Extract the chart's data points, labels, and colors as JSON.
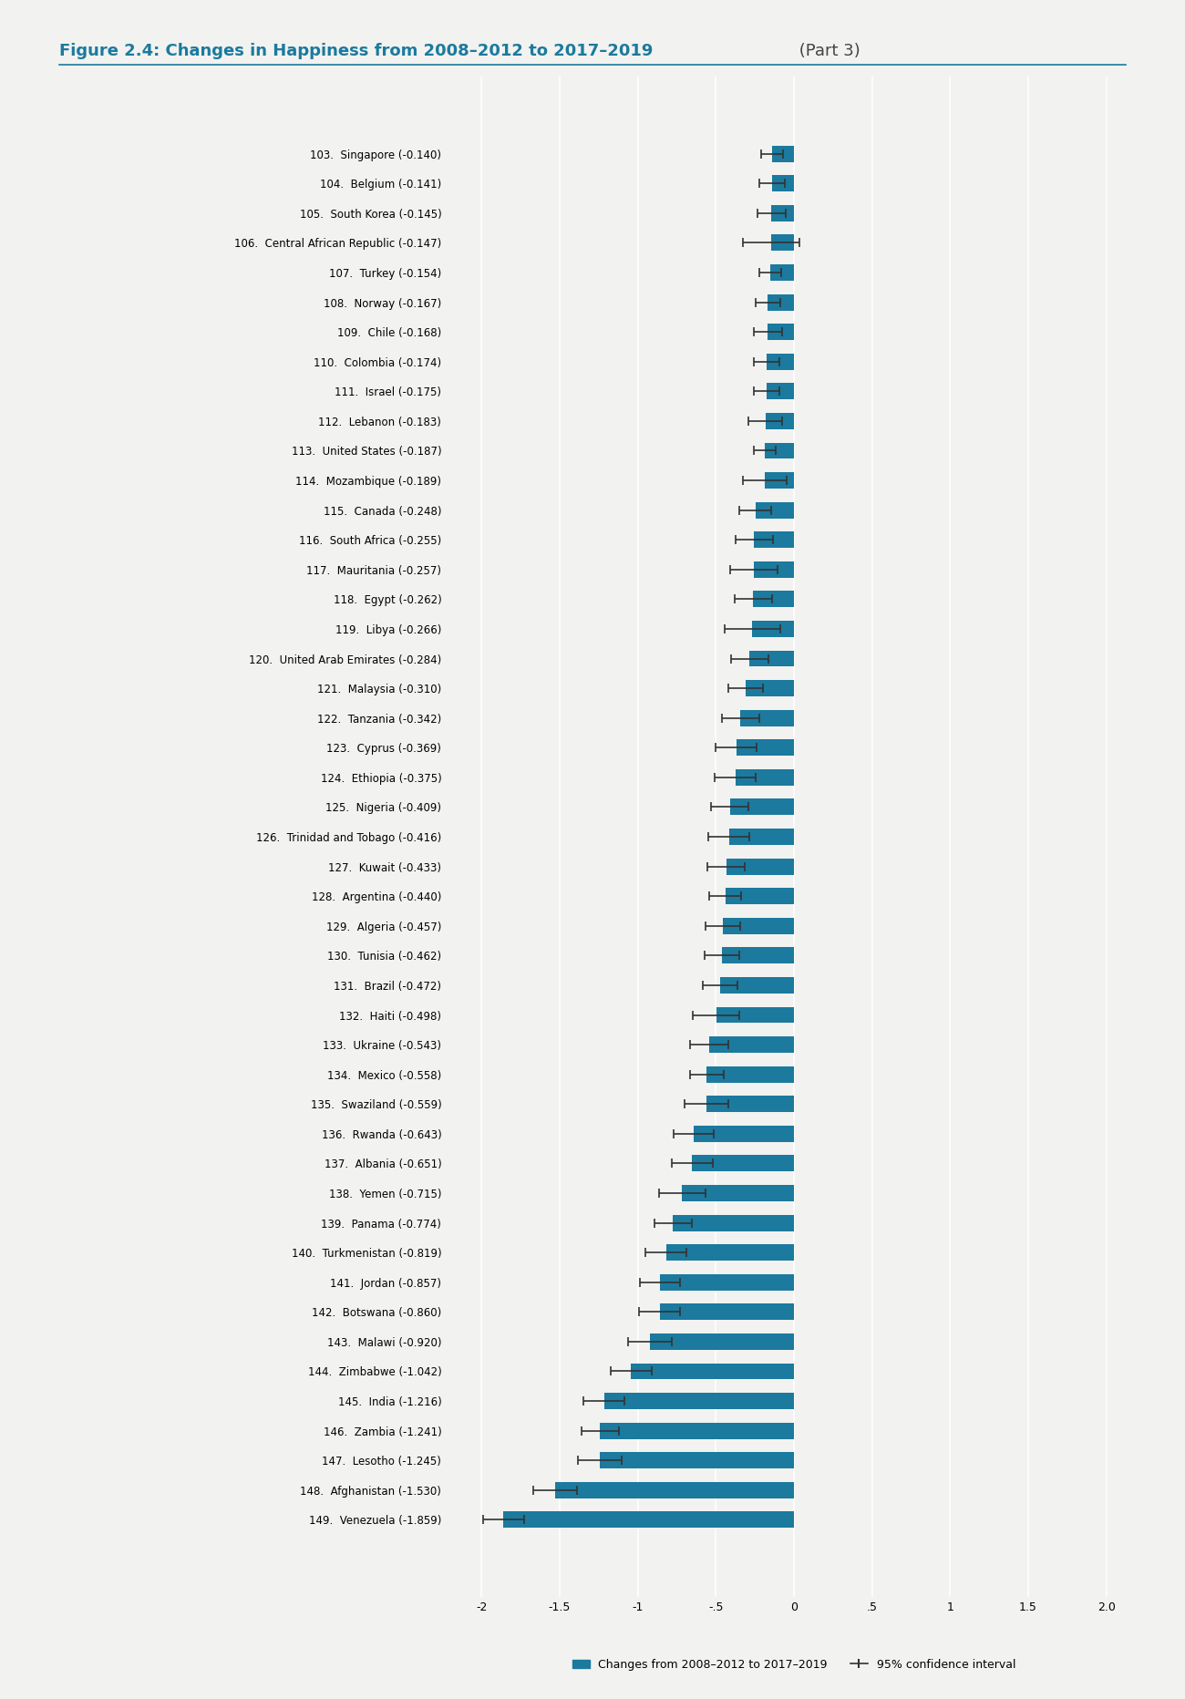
{
  "title_bold": "Figure 2.4: Changes in Happiness from 2008–2012 to 2017–2019",
  "title_normal": " (Part 3)",
  "background_color": "#f2f2f0",
  "bar_color": "#1b7a9e",
  "countries": [
    "103.  Singapore (-0.140)",
    "104.  Belgium (-0.141)",
    "105.  South Korea (-0.145)",
    "106.  Central African Republic (-0.147)",
    "107.  Turkey (-0.154)",
    "108.  Norway (-0.167)",
    "109.  Chile (-0.168)",
    "110.  Colombia (-0.174)",
    "111.  Israel (-0.175)",
    "112.  Lebanon (-0.183)",
    "113.  United States (-0.187)",
    "114.  Mozambique (-0.189)",
    "115.  Canada (-0.248)",
    "116.  South Africa (-0.255)",
    "117.  Mauritania (-0.257)",
    "118.  Egypt (-0.262)",
    "119.  Libya (-0.266)",
    "120.  United Arab Emirates (-0.284)",
    "121.  Malaysia (-0.310)",
    "122.  Tanzania (-0.342)",
    "123.  Cyprus (-0.369)",
    "124.  Ethiopia (-0.375)",
    "125.  Nigeria (-0.409)",
    "126.  Trinidad and Tobago (-0.416)",
    "127.  Kuwait (-0.433)",
    "128.  Argentina (-0.440)",
    "129.  Algeria (-0.457)",
    "130.  Tunisia (-0.462)",
    "131.  Brazil (-0.472)",
    "132.  Haiti (-0.498)",
    "133.  Ukraine (-0.543)",
    "134.  Mexico (-0.558)",
    "135.  Swaziland (-0.559)",
    "136.  Rwanda (-0.643)",
    "137.  Albania (-0.651)",
    "138.  Yemen (-0.715)",
    "139.  Panama (-0.774)",
    "140.  Turkmenistan (-0.819)",
    "141.  Jordan (-0.857)",
    "142.  Botswana (-0.860)",
    "143.  Malawi (-0.920)",
    "144.  Zimbabwe (-1.042)",
    "145.  India (-1.216)",
    "146.  Zambia (-1.241)",
    "147.  Lesotho (-1.245)",
    "148.  Afghanistan (-1.530)",
    "149.  Venezuela (-1.859)"
  ],
  "values": [
    -0.14,
    -0.141,
    -0.145,
    -0.147,
    -0.154,
    -0.167,
    -0.168,
    -0.174,
    -0.175,
    -0.183,
    -0.187,
    -0.189,
    -0.248,
    -0.255,
    -0.257,
    -0.262,
    -0.266,
    -0.284,
    -0.31,
    -0.342,
    -0.369,
    -0.375,
    -0.409,
    -0.416,
    -0.433,
    -0.44,
    -0.457,
    -0.462,
    -0.472,
    -0.498,
    -0.543,
    -0.558,
    -0.559,
    -0.643,
    -0.651,
    -0.715,
    -0.774,
    -0.819,
    -0.857,
    -0.86,
    -0.92,
    -1.042,
    -1.216,
    -1.241,
    -1.245,
    -1.53,
    -1.859
  ],
  "ci_lower": [
    0.07,
    0.08,
    0.09,
    0.18,
    0.07,
    0.08,
    0.09,
    0.08,
    0.08,
    0.11,
    0.07,
    0.14,
    0.1,
    0.12,
    0.15,
    0.12,
    0.18,
    0.12,
    0.11,
    0.12,
    0.13,
    0.13,
    0.12,
    0.13,
    0.12,
    0.1,
    0.11,
    0.11,
    0.11,
    0.15,
    0.12,
    0.11,
    0.14,
    0.13,
    0.13,
    0.15,
    0.12,
    0.13,
    0.13,
    0.13,
    0.14,
    0.13,
    0.13,
    0.12,
    0.14,
    0.14,
    0.13
  ],
  "ci_upper": [
    0.07,
    0.08,
    0.09,
    0.18,
    0.07,
    0.08,
    0.09,
    0.08,
    0.08,
    0.11,
    0.07,
    0.14,
    0.1,
    0.12,
    0.15,
    0.12,
    0.18,
    0.12,
    0.11,
    0.12,
    0.13,
    0.13,
    0.12,
    0.13,
    0.12,
    0.1,
    0.11,
    0.11,
    0.11,
    0.15,
    0.12,
    0.11,
    0.14,
    0.13,
    0.13,
    0.15,
    0.12,
    0.13,
    0.13,
    0.13,
    0.14,
    0.13,
    0.13,
    0.12,
    0.14,
    0.14,
    0.13
  ],
  "xlim": [
    -2.2,
    2.2
  ],
  "xticks": [
    -2.0,
    -1.5,
    -1.0,
    -0.5,
    0.0,
    0.5,
    1.0,
    1.5,
    2.0
  ],
  "xtick_labels": [
    "-2",
    "-1.5",
    "-1",
    "-.5",
    "0",
    ".5",
    "1",
    "1.5",
    "2.0"
  ],
  "legend_bar_label": "Changes from 2008–2012 to 2017–2019",
  "legend_ci_label": "95% confidence interval"
}
